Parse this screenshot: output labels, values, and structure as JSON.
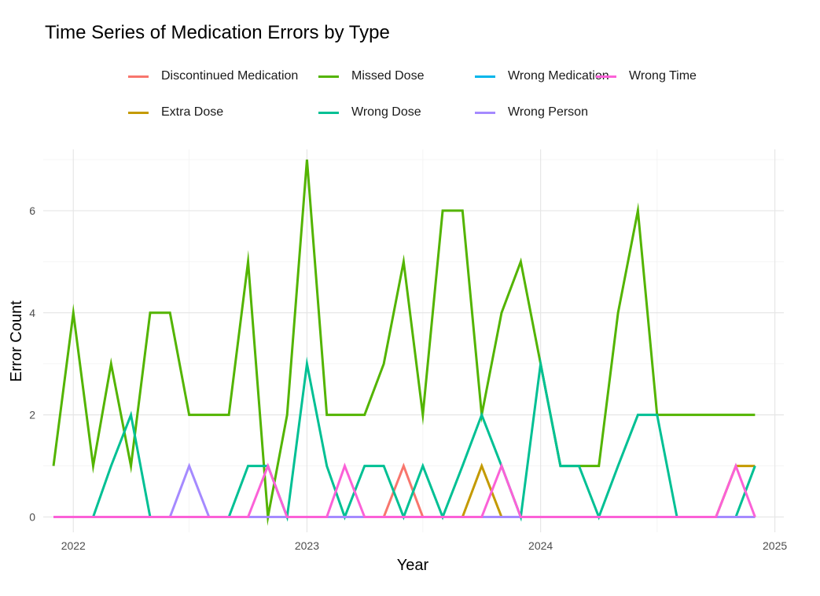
{
  "chart_data": {
    "type": "line",
    "title": "Time Series of Medication Errors by Type",
    "xlabel": "Year",
    "ylabel": "Error Count",
    "xlim": [
      "2021-11-15",
      "2025-01-15"
    ],
    "ylim": [
      -0.3,
      7.2
    ],
    "x_ticks": [
      "2022",
      "2023",
      "2024",
      "2025"
    ],
    "y_ticks": [
      0,
      2,
      4,
      6
    ],
    "grid": true,
    "legend_position": "top",
    "x": [
      "2021-12",
      "2022-01",
      "2022-02",
      "2022-03",
      "2022-04",
      "2022-05",
      "2022-06",
      "2022-07",
      "2022-08",
      "2022-09",
      "2022-10",
      "2022-11",
      "2022-12",
      "2023-01",
      "2023-02",
      "2023-03",
      "2023-04",
      "2023-05",
      "2023-06",
      "2023-07",
      "2023-08",
      "2023-09",
      "2023-10",
      "2023-11",
      "2023-12",
      "2024-01",
      "2024-02",
      "2024-03",
      "2024-04",
      "2024-05",
      "2024-06",
      "2024-07",
      "2024-08",
      "2024-09",
      "2024-10",
      "2024-11",
      "2024-12"
    ],
    "series": [
      {
        "name": "Discontinued Medication",
        "color": "#F8766D",
        "values": [
          0,
          0,
          0,
          0,
          0,
          0,
          0,
          0,
          0,
          0,
          0,
          0,
          0,
          0,
          0,
          0,
          0,
          0,
          1,
          0,
          0,
          0,
          0,
          0,
          0,
          0,
          0,
          0,
          0,
          0,
          0,
          0,
          0,
          0,
          0,
          0,
          0
        ]
      },
      {
        "name": "Extra Dose",
        "color": "#C49A00",
        "values": [
          0,
          0,
          0,
          0,
          0,
          0,
          0,
          0,
          0,
          0,
          0,
          0,
          0,
          0,
          0,
          0,
          0,
          0,
          0,
          0,
          0,
          0,
          1,
          0,
          0,
          0,
          0,
          0,
          0,
          0,
          0,
          0,
          0,
          0,
          0,
          1,
          1
        ]
      },
      {
        "name": "Missed Dose",
        "color": "#53B400",
        "values": [
          1,
          4,
          1,
          3,
          1,
          4,
          4,
          2,
          2,
          2,
          5,
          0,
          2,
          7,
          2,
          2,
          2,
          3,
          5,
          2,
          6,
          6,
          2,
          4,
          5,
          3,
          1,
          1,
          1,
          4,
          6,
          2,
          2,
          2,
          2,
          2,
          2
        ]
      },
      {
        "name": "Wrong Dose",
        "color": "#00C094",
        "values": [
          0,
          0,
          0,
          1,
          2,
          0,
          0,
          0,
          0,
          0,
          1,
          1,
          0,
          3,
          1,
          0,
          1,
          1,
          0,
          1,
          0,
          1,
          2,
          1,
          0,
          3,
          1,
          1,
          0,
          1,
          2,
          2,
          0,
          0,
          0,
          0,
          1
        ]
      },
      {
        "name": "Wrong Medication",
        "color": "#00B6EB",
        "values": [
          0,
          0,
          0,
          0,
          0,
          0,
          0,
          0,
          0,
          0,
          0,
          0,
          0,
          0,
          0,
          0,
          0,
          0,
          0,
          0,
          0,
          0,
          0,
          0,
          0,
          0,
          0,
          0,
          0,
          0,
          0,
          0,
          0,
          0,
          0,
          0,
          0
        ]
      },
      {
        "name": "Wrong Person",
        "color": "#A58AFF",
        "values": [
          0,
          0,
          0,
          0,
          0,
          0,
          0,
          1,
          0,
          0,
          0,
          0,
          0,
          0,
          0,
          0,
          0,
          0,
          0,
          0,
          0,
          0,
          0,
          0,
          0,
          0,
          0,
          0,
          0,
          0,
          0,
          0,
          0,
          0,
          0,
          0,
          0
        ]
      },
      {
        "name": "Wrong Time",
        "color": "#FB61D7",
        "values": [
          0,
          0,
          0,
          0,
          0,
          0,
          0,
          0,
          0,
          0,
          0,
          1,
          0,
          0,
          0,
          1,
          0,
          0,
          0,
          0,
          0,
          0,
          0,
          1,
          0,
          0,
          0,
          0,
          0,
          0,
          0,
          0,
          0,
          0,
          0,
          1,
          0
        ]
      }
    ]
  },
  "legend_order": [
    "Discontinued Medication",
    "Missed Dose",
    "Wrong Medication",
    "Wrong Time",
    "Extra Dose",
    "Wrong Dose",
    "Wrong Person"
  ]
}
